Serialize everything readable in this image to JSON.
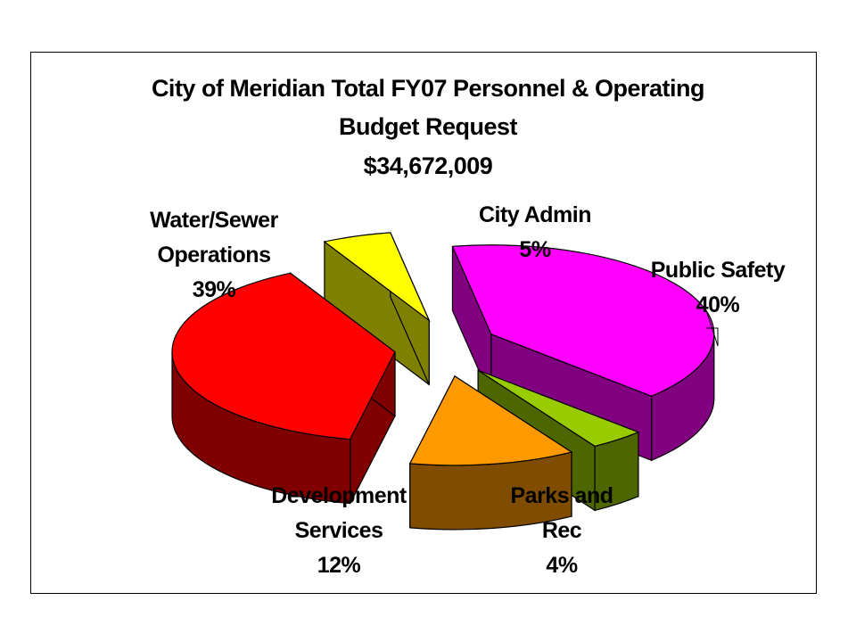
{
  "chart_data": {
    "type": "pie",
    "title": "City of Meridian Total FY07 Personnel & Operating Budget Request",
    "title_lines": [
      "City of Meridian Total FY07 Personnel & Operating",
      "Budget Request",
      "$34,672,009"
    ],
    "total": "$34,672,009",
    "style": "3D exploded pie",
    "slices": [
      {
        "name": "Public Safety",
        "name_lines": [
          "Public Safety"
        ],
        "value": 40,
        "label": "40%",
        "color": "#ff00ff",
        "side_color": "#800080"
      },
      {
        "name": "Parks and Rec",
        "name_lines": [
          "Parks and",
          "Rec"
        ],
        "value": 4,
        "label": "4%",
        "color": "#99cc00",
        "side_color": "#4d6600"
      },
      {
        "name": "Development Services",
        "name_lines": [
          "Development",
          "Services"
        ],
        "value": 12,
        "label": "12%",
        "color": "#ff9900",
        "side_color": "#804d00"
      },
      {
        "name": "Water/Sewer Operations",
        "name_lines": [
          "Water/Sewer",
          "Operations"
        ],
        "value": 39,
        "label": "39%",
        "color": "#ff0000",
        "side_color": "#800000"
      },
      {
        "name": "City Admin",
        "name_lines": [
          "City Admin"
        ],
        "value": 5,
        "label": "5%",
        "color": "#ffff00",
        "side_color": "#808000"
      }
    ]
  }
}
